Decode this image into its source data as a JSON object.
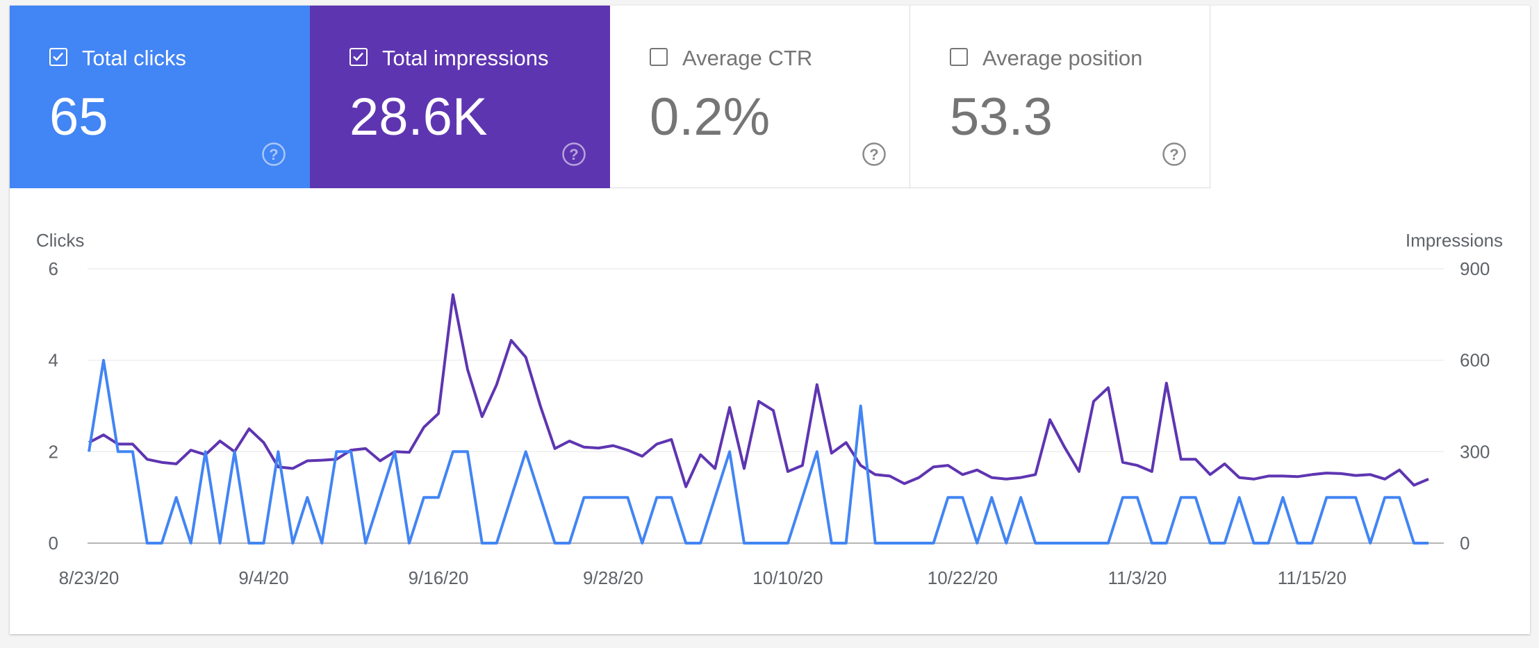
{
  "metrics": [
    {
      "label": "Total clicks",
      "value": "65",
      "checked": true,
      "color": "#4285f4"
    },
    {
      "label": "Total impressions",
      "value": "28.6K",
      "checked": true,
      "color": "#5e35b1"
    },
    {
      "label": "Average CTR",
      "value": "0.2%",
      "checked": false,
      "color": "#ffffff"
    },
    {
      "label": "Average position",
      "value": "53.3",
      "checked": false,
      "color": "#ffffff"
    }
  ],
  "chart_data": {
    "type": "line",
    "ylabel_left": "Clicks",
    "ylabel_right": "Impressions",
    "y_left_ticks": [
      "0",
      "2",
      "4",
      "6"
    ],
    "y_right_ticks": [
      "0",
      "300",
      "600",
      "900"
    ],
    "y_left_range": [
      0,
      6
    ],
    "y_right_range": [
      0,
      900
    ],
    "x_tick_labels": [
      "8/23/20",
      "9/4/20",
      "9/16/20",
      "9/28/20",
      "10/10/20",
      "10/22/20",
      "11/3/20",
      "11/15/20"
    ],
    "x": [
      "8/23/20",
      "8/24/20",
      "8/25/20",
      "8/26/20",
      "8/27/20",
      "8/28/20",
      "8/29/20",
      "8/30/20",
      "8/31/20",
      "9/1/20",
      "9/2/20",
      "9/3/20",
      "9/4/20",
      "9/5/20",
      "9/6/20",
      "9/7/20",
      "9/8/20",
      "9/9/20",
      "9/10/20",
      "9/11/20",
      "9/12/20",
      "9/13/20",
      "9/14/20",
      "9/15/20",
      "9/16/20",
      "9/17/20",
      "9/18/20",
      "9/19/20",
      "9/20/20",
      "9/21/20",
      "9/22/20",
      "9/23/20",
      "9/24/20",
      "9/25/20",
      "9/26/20",
      "9/27/20",
      "9/28/20",
      "9/29/20",
      "9/30/20",
      "10/1/20",
      "10/2/20",
      "10/3/20",
      "10/4/20",
      "10/5/20",
      "10/6/20",
      "10/7/20",
      "10/8/20",
      "10/9/20",
      "10/10/20",
      "10/11/20",
      "10/12/20",
      "10/13/20",
      "10/14/20",
      "10/15/20",
      "10/16/20",
      "10/17/20",
      "10/18/20",
      "10/19/20",
      "10/20/20",
      "10/21/20",
      "10/22/20",
      "10/23/20",
      "10/24/20",
      "10/25/20",
      "10/26/20",
      "10/27/20",
      "10/28/20",
      "10/29/20",
      "10/30/20",
      "10/31/20",
      "11/1/20",
      "11/2/20",
      "11/3/20",
      "11/4/20",
      "11/5/20",
      "11/6/20",
      "11/7/20",
      "11/8/20",
      "11/9/20",
      "11/10/20",
      "11/11/20",
      "11/12/20",
      "11/13/20",
      "11/14/20",
      "11/15/20",
      "11/16/20",
      "11/17/20",
      "11/18/20",
      "11/19/20",
      "11/20/20",
      "11/21/20",
      "11/22/20",
      "11/23/20"
    ],
    "series": [
      {
        "name": "Clicks",
        "axis": "left",
        "color": "#4285f4",
        "values": [
          2,
          4,
          2,
          2,
          0,
          0,
          1,
          0,
          2,
          0,
          2,
          0,
          0,
          2,
          0,
          1,
          0,
          2,
          2,
          0,
          1,
          2,
          0,
          1,
          1,
          2,
          2,
          0,
          0,
          1,
          2,
          1,
          0,
          0,
          1,
          1,
          1,
          1,
          0,
          1,
          1,
          0,
          0,
          1,
          2,
          0,
          0,
          0,
          0,
          1,
          2,
          0,
          0,
          3,
          0,
          0,
          0,
          0,
          0,
          1,
          1,
          0,
          1,
          0,
          1,
          0,
          0,
          0,
          0,
          0,
          0,
          1,
          1,
          0,
          0,
          1,
          1,
          0,
          0,
          1,
          0,
          0,
          1,
          0,
          0,
          1,
          1,
          1,
          0,
          1,
          1,
          0,
          0
        ]
      },
      {
        "name": "Impressions",
        "axis": "right",
        "color": "#5e35b1",
        "values": [
          330,
          355,
          325,
          325,
          275,
          265,
          260,
          305,
          290,
          335,
          300,
          375,
          330,
          250,
          245,
          270,
          272,
          275,
          305,
          310,
          270,
          300,
          298,
          380,
          425,
          815,
          570,
          415,
          520,
          665,
          610,
          450,
          310,
          335,
          315,
          312,
          320,
          305,
          285,
          325,
          340,
          185,
          290,
          245,
          445,
          245,
          465,
          435,
          235,
          255,
          520,
          295,
          330,
          255,
          225,
          220,
          195,
          215,
          250,
          255,
          225,
          240,
          215,
          210,
          215,
          225,
          405,
          315,
          235,
          465,
          510,
          265,
          255,
          235,
          525,
          275,
          275,
          225,
          260,
          215,
          210,
          220,
          220,
          218,
          225,
          230,
          228,
          222,
          225,
          210,
          240,
          190,
          210
        ]
      }
    ]
  }
}
